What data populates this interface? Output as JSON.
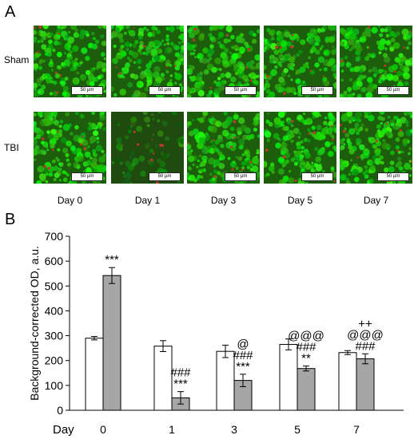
{
  "panels": {
    "a": "A",
    "b": "B"
  },
  "micrographs": {
    "rows": [
      "Sham",
      "TBI"
    ],
    "days": [
      "Day 0",
      "Day 1",
      "Day 3",
      "Day 5",
      "Day 7"
    ],
    "scale_bar_label": "50 µm"
  },
  "chart_data": {
    "type": "bar",
    "ylabel": "Background-corrected OD, a.u.",
    "xlabel": "Day",
    "categories": [
      "0",
      "1",
      "3",
      "5",
      "7"
    ],
    "ylim": [
      0,
      700
    ],
    "yticks": [
      0,
      100,
      200,
      300,
      400,
      500,
      600,
      700
    ],
    "series": [
      {
        "values": [
          290,
          258,
          237,
          265,
          232
        ],
        "errors": [
          7,
          22,
          25,
          22,
          8
        ],
        "color": "#ffffff"
      },
      {
        "values": [
          542,
          50,
          120,
          168,
          207
        ],
        "errors": [
          32,
          25,
          25,
          10,
          20
        ],
        "color": "#a6a6a6"
      }
    ],
    "annotations": [
      [
        "***"
      ],
      [
        "###",
        "***"
      ],
      [
        "@",
        "###",
        "***"
      ],
      [
        "@@@",
        "###",
        "**"
      ],
      [
        "++",
        "@@@",
        "###"
      ]
    ]
  }
}
